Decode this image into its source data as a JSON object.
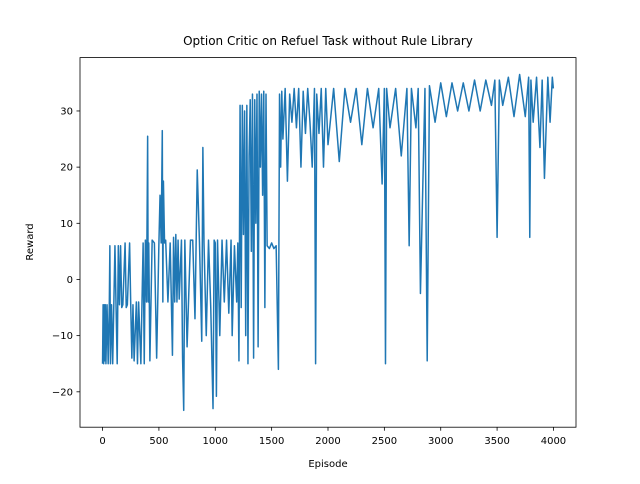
{
  "chart_data": {
    "type": "line",
    "title": "Option Critic on Refuel Task without Rule Library",
    "x_label": "Episode",
    "y_label": "Reward",
    "xlim": [
      -200,
      4200
    ],
    "ylim": [
      -26.3,
      39.5
    ],
    "xticks": [
      0,
      500,
      1000,
      1500,
      2000,
      2500,
      3000,
      3500,
      4000
    ],
    "yticks": [
      {
        "value": -20,
        "label": "−20"
      },
      {
        "value": -10,
        "label": "−10"
      },
      0,
      10,
      20,
      30
    ],
    "grid": false,
    "x": [
      0,
      5,
      10,
      15,
      20,
      25,
      30,
      40,
      50,
      60,
      65,
      70,
      80,
      90,
      100,
      110,
      120,
      130,
      140,
      150,
      160,
      170,
      180,
      200,
      210,
      220,
      240,
      250,
      260,
      270,
      280,
      300,
      310,
      320,
      340,
      350,
      360,
      370,
      380,
      390,
      400,
      405,
      410,
      420,
      440,
      460,
      480,
      500,
      510,
      520,
      530,
      535,
      540,
      550,
      560,
      580,
      600,
      620,
      630,
      640,
      650,
      660,
      670,
      680,
      700,
      710,
      720,
      730,
      750,
      780,
      800,
      820,
      840,
      860,
      880,
      890,
      900,
      920,
      940,
      960,
      980,
      990,
      1000,
      1010,
      1020,
      1040,
      1060,
      1080,
      1100,
      1120,
      1140,
      1150,
      1170,
      1190,
      1200,
      1210,
      1220,
      1230,
      1240,
      1250,
      1260,
      1270,
      1280,
      1290,
      1300,
      1310,
      1320,
      1330,
      1340,
      1350,
      1360,
      1370,
      1380,
      1390,
      1400,
      1410,
      1420,
      1430,
      1440,
      1450,
      1460,
      1480,
      1500,
      1520,
      1540,
      1560,
      1570,
      1580,
      1590,
      1600,
      1620,
      1640,
      1660,
      1680,
      1700,
      1720,
      1740,
      1760,
      1780,
      1800,
      1820,
      1840,
      1860,
      1880,
      1890,
      1900,
      1920,
      1940,
      1960,
      1980,
      2000,
      2050,
      2100,
      2150,
      2200,
      2250,
      2300,
      2350,
      2400,
      2450,
      2480,
      2500,
      2510,
      2520,
      2550,
      2600,
      2650,
      2700,
      2720,
      2740,
      2780,
      2800,
      2820,
      2860,
      2880,
      2900,
      2950,
      3000,
      3050,
      3100,
      3150,
      3200,
      3250,
      3300,
      3350,
      3400,
      3450,
      3480,
      3500,
      3520,
      3550,
      3600,
      3650,
      3700,
      3750,
      3780,
      3790,
      3800,
      3820,
      3850,
      3880,
      3900,
      3920,
      3950,
      3970,
      3990,
      3999
    ],
    "series": [
      {
        "color": "#1f77b4",
        "values": [
          -15,
          -4.5,
          -15,
          -4.5,
          -14.5,
          -4.5,
          -15,
          -4.5,
          -15,
          -4.5,
          6,
          -15,
          -4.5,
          -15,
          -4.5,
          6,
          -5,
          -15,
          6,
          -4.5,
          6,
          -5,
          -4.5,
          6.5,
          -5,
          -4.5,
          6.5,
          -4.5,
          -14,
          -4.5,
          -14.5,
          -4,
          -15,
          -4,
          -15,
          -4,
          6.5,
          -15,
          7,
          -4,
          25.5,
          -4,
          6.5,
          -14.5,
          7,
          6.5,
          -14,
          6.5,
          15,
          6.5,
          26.5,
          -4,
          17.5,
          6.5,
          7,
          -4,
          6.5,
          -13.5,
          7.5,
          -4,
          8,
          -4,
          7,
          -3.5,
          7,
          -14,
          -23.3,
          7,
          -12,
          7,
          7,
          -7,
          19.5,
          6.5,
          -11,
          23.5,
          6.5,
          -10,
          7,
          -5,
          -23,
          7,
          6.5,
          -20.8,
          7,
          -10,
          7,
          -4,
          7,
          -6,
          7,
          -10,
          6,
          -4,
          6.5,
          -14.5,
          31,
          -5,
          31,
          8,
          30,
          -10,
          31,
          -15,
          22,
          32,
          5,
          33,
          -14,
          32,
          10,
          33,
          -12,
          33.5,
          20,
          33,
          15,
          33.5,
          -5,
          33,
          6,
          5.5,
          6.5,
          5.5,
          6,
          -16,
          33,
          20,
          33.5,
          25,
          34,
          17.5,
          33,
          28,
          34,
          27,
          34,
          20,
          33.5,
          26,
          34,
          28,
          20,
          34,
          -15,
          33,
          26,
          34,
          20,
          34,
          24,
          34,
          21,
          34,
          28,
          34,
          24,
          34,
          27,
          34,
          17,
          34,
          -15,
          34,
          27,
          34,
          22,
          34,
          6,
          34,
          27,
          34,
          -2.5,
          34,
          -14.5,
          34.5,
          28,
          35,
          29,
          35,
          30,
          35,
          30,
          35.5,
          30,
          35.5,
          31,
          35.5,
          7.5,
          35.5,
          31,
          36,
          29,
          36.5,
          29,
          36,
          7.5,
          35.5,
          28,
          36,
          23.5,
          35.5,
          18,
          36,
          28,
          36,
          34
        ]
      }
    ]
  }
}
